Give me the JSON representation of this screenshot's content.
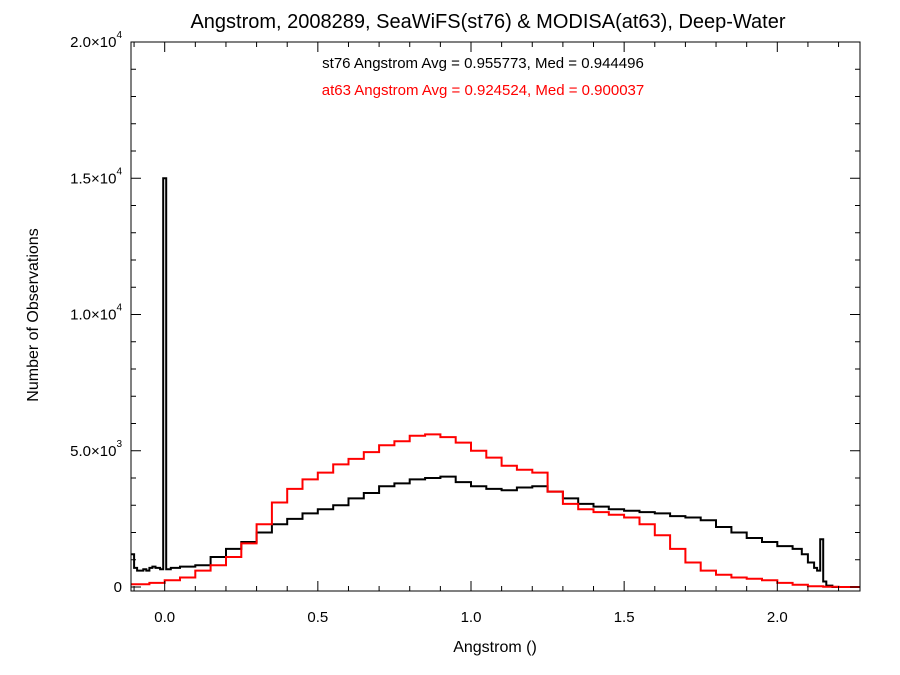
{
  "chart_data": {
    "type": "line",
    "title": "Angstrom, 2008289, SeaWiFS(st76) & MODISA(at63), Deep-Water",
    "xlabel": "Angstrom ()",
    "ylabel": "Number of Observations",
    "xlim": [
      -0.11,
      2.27
    ],
    "ylim": [
      0,
      20000
    ],
    "xticks": [
      0.0,
      0.5,
      1.0,
      1.5,
      2.0
    ],
    "xtick_labels": [
      "0.0",
      "0.5",
      "1.0",
      "1.5",
      "2.0"
    ],
    "yticks": [
      0,
      5000,
      10000,
      15000,
      20000
    ],
    "ytick_labels": [
      {
        "mantissa": "0",
        "exponent": ""
      },
      {
        "mantissa": "5.0×10",
        "exponent": "3"
      },
      {
        "mantissa": "1.0×10",
        "exponent": "4"
      },
      {
        "mantissa": "1.5×10",
        "exponent": "4"
      },
      {
        "mantissa": "2.0×10",
        "exponent": "4"
      }
    ],
    "grid": false,
    "annotations": [
      {
        "text": "st76 Angstrom Avg = 0.955773, Med = 0.944496",
        "color": "#000000"
      },
      {
        "text": "at63 Angstrom Avg = 0.924524, Med = 0.900037",
        "color": "#ff0000"
      }
    ],
    "series": [
      {
        "color": "#000000",
        "x": [
          -0.11,
          -0.1,
          -0.09,
          -0.08,
          -0.07,
          -0.06,
          -0.05,
          -0.04,
          -0.03,
          -0.015,
          -0.005,
          0.005,
          0.02,
          0.05,
          0.1,
          0.15,
          0.2,
          0.25,
          0.3,
          0.35,
          0.4,
          0.45,
          0.5,
          0.55,
          0.6,
          0.65,
          0.7,
          0.75,
          0.8,
          0.85,
          0.9,
          0.95,
          1.0,
          1.05,
          1.1,
          1.15,
          1.2,
          1.25,
          1.3,
          1.35,
          1.4,
          1.45,
          1.5,
          1.55,
          1.6,
          1.65,
          1.7,
          1.75,
          1.8,
          1.85,
          1.9,
          1.95,
          2.0,
          2.05,
          2.08,
          2.1,
          2.12,
          2.13,
          2.14,
          2.15,
          2.16,
          2.18,
          2.2,
          2.27
        ],
        "y": [
          1200,
          700,
          600,
          600,
          650,
          600,
          700,
          750,
          700,
          650,
          15000,
          650,
          700,
          750,
          800,
          1100,
          1400,
          1650,
          2000,
          2300,
          2500,
          2700,
          2850,
          3000,
          3250,
          3450,
          3700,
          3800,
          3950,
          4000,
          4050,
          3850,
          3700,
          3600,
          3550,
          3650,
          3700,
          3500,
          3250,
          3050,
          2950,
          2850,
          2800,
          2750,
          2700,
          2600,
          2550,
          2450,
          2200,
          2000,
          1800,
          1650,
          1500,
          1400,
          1200,
          900,
          700,
          600,
          1750,
          200,
          50,
          0,
          0,
          0
        ]
      },
      {
        "color": "#ff0000",
        "x": [
          -0.11,
          -0.05,
          0.0,
          0.05,
          0.1,
          0.15,
          0.2,
          0.25,
          0.3,
          0.35,
          0.4,
          0.45,
          0.5,
          0.55,
          0.6,
          0.65,
          0.7,
          0.75,
          0.8,
          0.85,
          0.9,
          0.95,
          1.0,
          1.05,
          1.1,
          1.15,
          1.2,
          1.25,
          1.3,
          1.35,
          1.4,
          1.45,
          1.5,
          1.55,
          1.6,
          1.65,
          1.7,
          1.75,
          1.8,
          1.85,
          1.9,
          1.95,
          2.0,
          2.05,
          2.1,
          2.15,
          2.2,
          2.27
        ],
        "y": [
          100,
          150,
          250,
          350,
          600,
          800,
          1100,
          1600,
          2300,
          3100,
          3600,
          3950,
          4200,
          4500,
          4700,
          4950,
          5200,
          5350,
          5550,
          5600,
          5500,
          5300,
          5000,
          4750,
          4450,
          4300,
          4200,
          3500,
          3050,
          2850,
          2750,
          2650,
          2550,
          2300,
          1900,
          1400,
          900,
          600,
          450,
          350,
          300,
          250,
          150,
          80,
          30,
          10,
          0,
          0
        ]
      }
    ]
  }
}
